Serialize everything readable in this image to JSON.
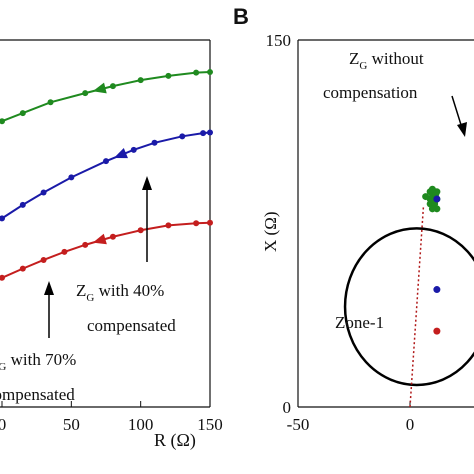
{
  "chart_data": [
    {
      "type": "line",
      "xlabel": "R (Ω)",
      "xlim": [
        0,
        150
      ],
      "x_tick_labels": [
        "0",
        "50",
        "100",
        "150"
      ],
      "series": [
        {
          "color": "#1f8a1f",
          "x": [
            0,
            15,
            35,
            60,
            80,
            100,
            120,
            140,
            150
          ],
          "y": [
            22,
            23.5,
            25.5,
            27.2,
            28.5,
            29.6,
            30.4,
            31,
            31.1
          ]
        },
        {
          "color": "#1a1aa8",
          "x": [
            0,
            15,
            30,
            50,
            75,
            95,
            110,
            130,
            145,
            150
          ],
          "y": [
            4,
            6.5,
            8.8,
            11.6,
            14.6,
            16.7,
            18,
            19.2,
            19.8,
            19.9
          ]
        },
        {
          "color": "#c41e1e",
          "x": [
            0,
            15,
            30,
            45,
            60,
            80,
            100,
            120,
            140,
            150
          ],
          "y": [
            -7,
            -5.3,
            -3.7,
            -2.2,
            -0.9,
            0.6,
            1.8,
            2.7,
            3.1,
            3.2
          ]
        }
      ],
      "annotations": [
        {
          "main": "Z",
          "sub": "G",
          "rest": " with 40%",
          "line2": "compensated"
        },
        {
          "main": "Z",
          "sub": "G",
          "rest": " with 70%",
          "line2": "compensated"
        }
      ]
    },
    {
      "type": "scatter",
      "panel_letter": "B",
      "ylabel": "X (Ω)",
      "xlim": [
        -50,
        20
      ],
      "ylim": [
        0,
        150
      ],
      "x_tick_labels": [
        "-50",
        "0"
      ],
      "y_tick_labels": [
        "150",
        "0"
      ],
      "zone_label": "Zone-1",
      "annotation": {
        "main": "Z",
        "sub": "G",
        "rest": " without",
        "line2": "compensation"
      },
      "points": [
        {
          "x": 9,
          "y": 88,
          "color": "#1f8a1f"
        },
        {
          "x": 9,
          "y": 83,
          "color": "#1f8a1f"
        },
        {
          "x": 10,
          "y": 86,
          "color": "#1f8a1f"
        },
        {
          "x": 11,
          "y": 84,
          "color": "#1f8a1f"
        },
        {
          "x": 11.5,
          "y": 87,
          "color": "#1f8a1f"
        },
        {
          "x": 12,
          "y": 85,
          "color": "#1f8a1f"
        },
        {
          "x": 12,
          "y": 88,
          "color": "#1f8a1f"
        },
        {
          "x": 10,
          "y": 89,
          "color": "#1f8a1f"
        },
        {
          "x": 11,
          "y": 83,
          "color": "#1f8a1f"
        },
        {
          "x": 12,
          "y": 81,
          "color": "#1f8a1f"
        },
        {
          "x": 10,
          "y": 81,
          "color": "#1f8a1f"
        },
        {
          "x": 9,
          "y": 85,
          "color": "#1f8a1f"
        },
        {
          "x": 7,
          "y": 86,
          "color": "#1f8a1f"
        },
        {
          "x": 12,
          "y": 85,
          "color": "#1a1aa8"
        },
        {
          "x": 12,
          "y": 48,
          "color": "#1a1aa8"
        },
        {
          "x": 12,
          "y": 31,
          "color": "#c41e1e"
        }
      ],
      "zone_circle": {
        "cx": 3,
        "cy": 41,
        "r": 32
      },
      "zone_diameter": {
        "x1": 0,
        "y1": 0,
        "x2": 6,
        "y2": 82
      }
    }
  ]
}
